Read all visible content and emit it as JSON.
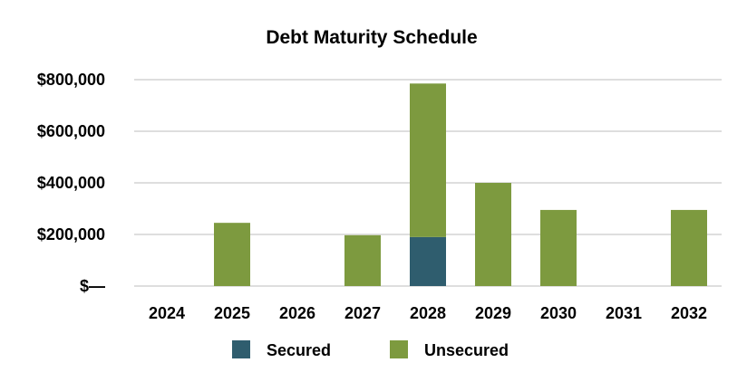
{
  "chart_data": {
    "type": "bar",
    "stacked": true,
    "title": "Debt Maturity Schedule",
    "xlabel": "",
    "ylabel": "",
    "categories": [
      "2024",
      "2025",
      "2026",
      "2027",
      "2028",
      "2029",
      "2030",
      "2031",
      "2032"
    ],
    "series": [
      {
        "name": "Secured",
        "color": "#2f5d6e",
        "values": [
          0,
          0,
          0,
          0,
          190000,
          0,
          0,
          0,
          0
        ]
      },
      {
        "name": "Unsecured",
        "color": "#7d9a3f",
        "values": [
          0,
          245000,
          0,
          197000,
          595000,
          400000,
          295000,
          0,
          295000
        ]
      }
    ],
    "ylim": [
      0,
      800000
    ],
    "yticks": [
      0,
      200000,
      400000,
      600000,
      800000
    ],
    "ytick_labels": [
      "$—",
      "$200,000",
      "$400,000",
      "$600,000",
      "$800,000"
    ],
    "grid": true,
    "legend_position": "bottom"
  }
}
